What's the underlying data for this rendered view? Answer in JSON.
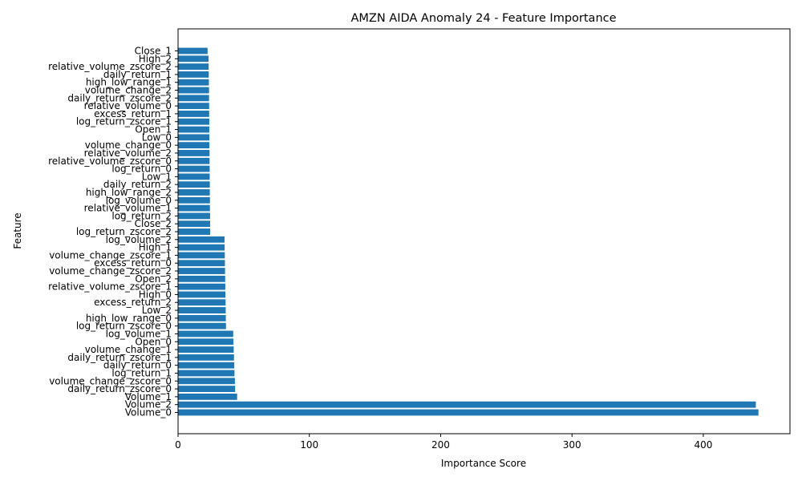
{
  "chart_data": {
    "type": "bar",
    "orientation": "horizontal",
    "title": "AMZN AIDA Anomaly 24 - Feature Importance",
    "xlabel": "Importance Score",
    "ylabel": "Feature",
    "xlim": [
      0,
      466
    ],
    "xticks": [
      0,
      100,
      200,
      300,
      400
    ],
    "bar_color": "#1f77b4",
    "grid": false,
    "categories": [
      "Volume_0",
      "Volume_2",
      "Volume_1",
      "daily_return_zscore_0",
      "volume_change_zscore_0",
      "log_return_1",
      "daily_return_0",
      "daily_return_zscore_1",
      "volume_change_1",
      "Open_0",
      "log_volume_1",
      "log_return_zscore_0",
      "high_low_range_0",
      "Low_2",
      "excess_return_2",
      "High_0",
      "relative_volume_zscore_1",
      "Open_2",
      "volume_change_zscore_2",
      "excess_return_0",
      "volume_change_zscore_1",
      "High_1",
      "log_volume_2",
      "log_return_zscore_2",
      "Close_2",
      "log_return_2",
      "relative_volume_1",
      "log_volume_0",
      "high_low_range_2",
      "daily_return_2",
      "Low_1",
      "log_return_0",
      "relative_volume_zscore_0",
      "relative_volume_2",
      "volume_change_0",
      "Low_0",
      "Open_1",
      "log_return_zscore_1",
      "excess_return_1",
      "relative_volume_0",
      "daily_return_zscore_2",
      "volume_change_2",
      "high_low_range_1",
      "daily_return_1",
      "relative_volume_zscore_2",
      "High_2",
      "Close_1"
    ],
    "values": [
      442,
      440,
      45,
      43.5,
      43.3,
      43,
      42.8,
      42.6,
      42.4,
      42.2,
      42,
      36.5,
      36.4,
      36.3,
      36.2,
      36.1,
      36,
      35.9,
      35.8,
      35.7,
      35.6,
      35.5,
      35.4,
      24.5,
      24.4,
      24.4,
      24.3,
      24.3,
      24.2,
      24.2,
      24.1,
      24.1,
      24,
      24,
      23.9,
      23.9,
      23.8,
      23.8,
      23.7,
      23.7,
      23.6,
      23.6,
      23.5,
      23.4,
      23.3,
      23.2,
      22.5
    ]
  }
}
